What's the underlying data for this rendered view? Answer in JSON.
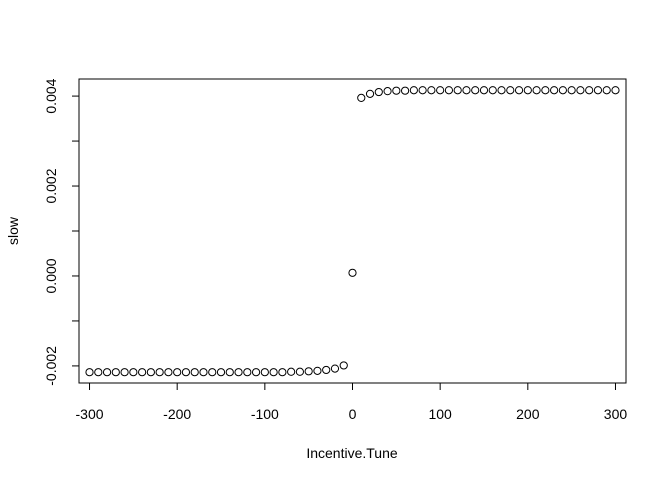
{
  "chart_data": {
    "type": "scatter",
    "title": "",
    "xlabel": "Incentive.Tune",
    "ylabel": "slow",
    "xlim": [
      -312,
      312
    ],
    "ylim": [
      -0.00238,
      0.00438
    ],
    "x_ticks": [
      -300,
      -200,
      -100,
      0,
      100,
      200,
      300
    ],
    "x_tick_labels": [
      "-300",
      "-200",
      "-100",
      "0",
      "100",
      "200",
      "300"
    ],
    "y_ticks": [
      -0.002,
      -0.001,
      0.0,
      0.001,
      0.002,
      0.003,
      0.004
    ],
    "y_tick_labels": [
      "-0.002",
      "",
      "0.000",
      "",
      "0.002",
      "",
      "0.004"
    ],
    "grid": false,
    "legend": "none",
    "marker": "open-circle",
    "series": [
      {
        "x": [
          -300,
          -290,
          -280,
          -270,
          -260,
          -250,
          -240,
          -230,
          -220,
          -210,
          -200,
          -190,
          -180,
          -170,
          -160,
          -150,
          -140,
          -130,
          -120,
          -110,
          -100,
          -90,
          -80,
          -70,
          -60,
          -50,
          -40,
          -30,
          -20,
          -10,
          0,
          10,
          20,
          30,
          40,
          50,
          60,
          70,
          80,
          90,
          100,
          110,
          120,
          130,
          140,
          150,
          160,
          170,
          180,
          190,
          200,
          210,
          220,
          230,
          240,
          250,
          260,
          270,
          280,
          290,
          300
        ],
        "y": [
          -0.00214,
          -0.00214,
          -0.00214,
          -0.00214,
          -0.00214,
          -0.00214,
          -0.00214,
          -0.00214,
          -0.00214,
          -0.00214,
          -0.00214,
          -0.00214,
          -0.00214,
          -0.00214,
          -0.00214,
          -0.00214,
          -0.00214,
          -0.00214,
          -0.00214,
          -0.00214,
          -0.00214,
          -0.00214,
          -0.00214,
          -0.00213,
          -0.00213,
          -0.00212,
          -0.00211,
          -0.00209,
          -0.00206,
          -0.00199,
          7e-05,
          0.00396,
          0.00405,
          0.00409,
          0.00411,
          0.00412,
          0.00412,
          0.00413,
          0.00413,
          0.00413,
          0.00413,
          0.00413,
          0.00413,
          0.00413,
          0.00413,
          0.00413,
          0.00413,
          0.00413,
          0.00413,
          0.00413,
          0.00413,
          0.00413,
          0.00413,
          0.00413,
          0.00413,
          0.00413,
          0.00413,
          0.00413,
          0.00413,
          0.00413,
          0.00413
        ]
      }
    ]
  }
}
